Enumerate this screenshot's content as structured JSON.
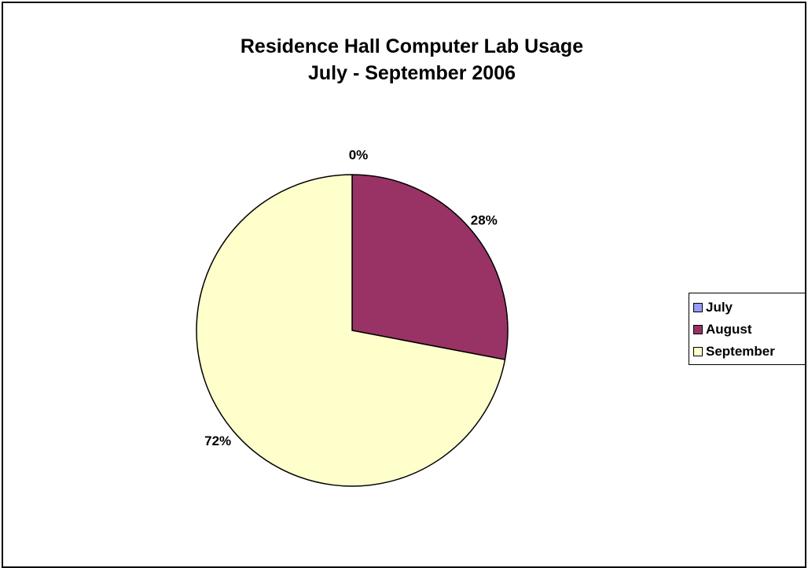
{
  "chart_data": {
    "type": "pie",
    "title": [
      "Residence Hall Computer Lab Usage",
      "July - September 2006"
    ],
    "categories": [
      "July",
      "August",
      "September"
    ],
    "values": [
      0,
      28,
      72
    ],
    "labels": [
      "0%",
      "28%",
      "72%"
    ],
    "colors": [
      "#9999ff",
      "#993366",
      "#ffffcc"
    ],
    "legend_position": "right"
  }
}
